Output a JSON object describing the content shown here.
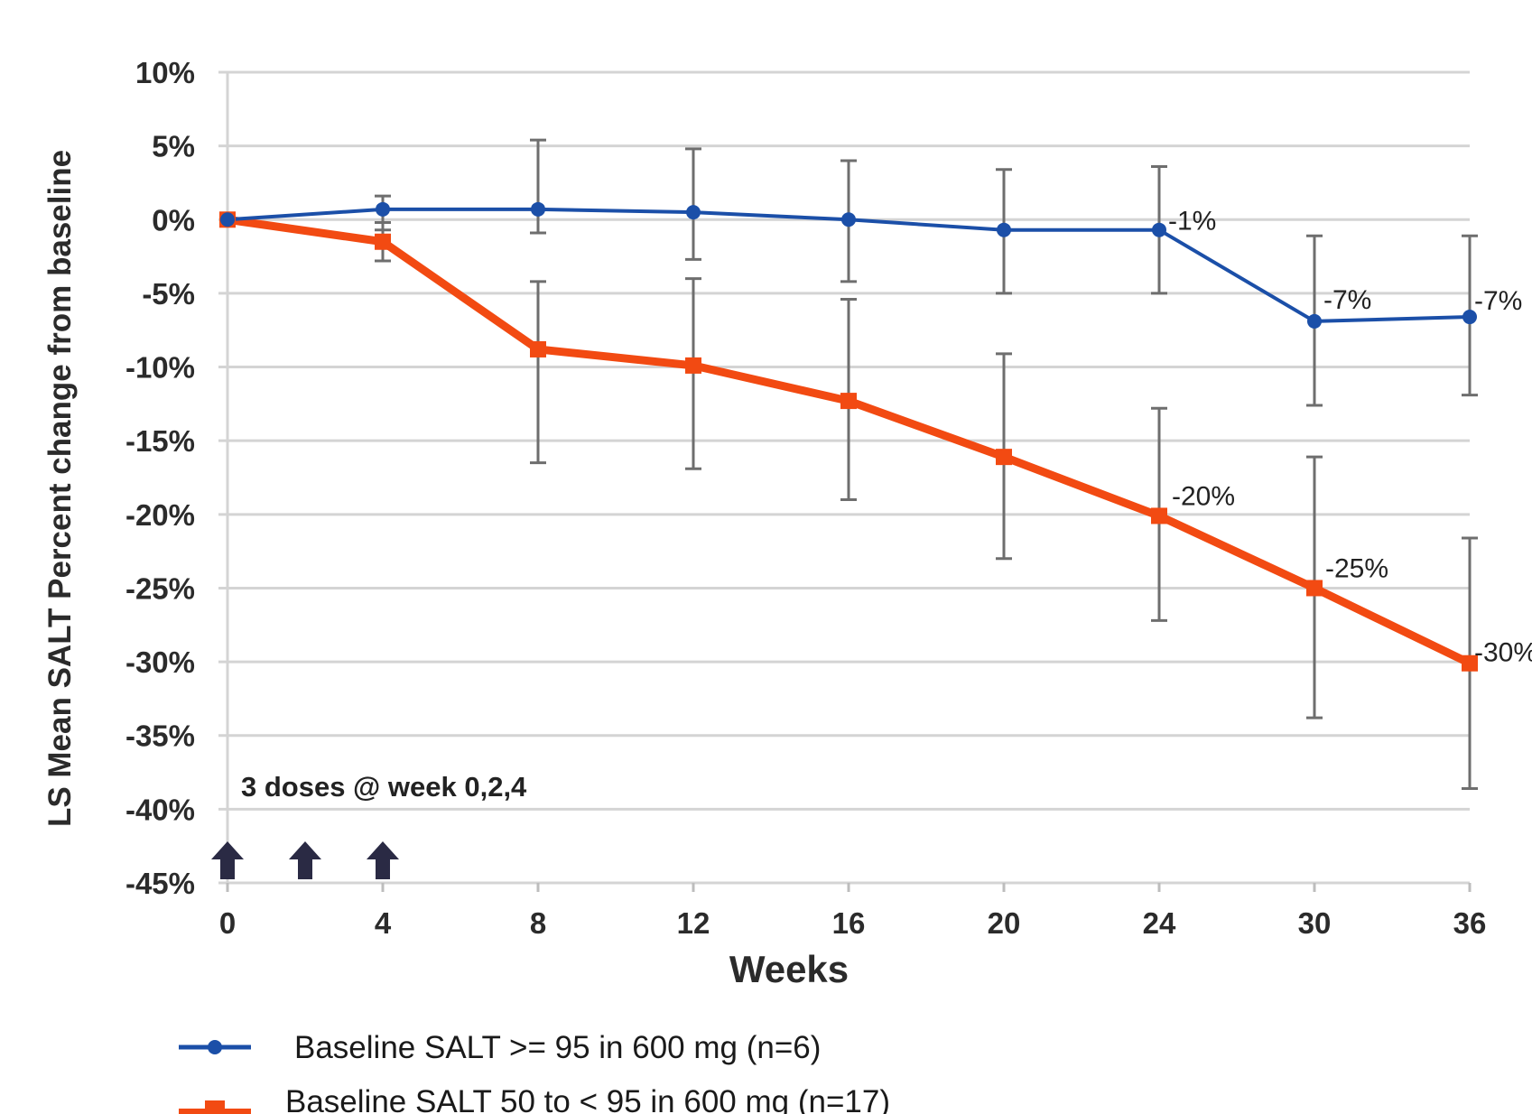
{
  "chart_data": {
    "type": "line",
    "xlabel": "Weeks",
    "ylabel": "LS Mean SALT Percent change from baseline",
    "x": [
      0,
      4,
      8,
      12,
      16,
      20,
      24,
      30,
      36
    ],
    "x_tick_labels": [
      "0",
      "4",
      "8",
      "12",
      "16",
      "20",
      "24",
      "30",
      "36"
    ],
    "ylim": [
      -45,
      10
    ],
    "y_ticks": [
      10,
      5,
      0,
      -5,
      -10,
      -15,
      -20,
      -25,
      -30,
      -35,
      -40,
      -45
    ],
    "y_tick_labels": [
      "10%",
      "5%",
      "0%",
      "-5%",
      "-10%",
      "-15%",
      "-20%",
      "-25%",
      "-30%",
      "-35%",
      "-40%",
      "-45%"
    ],
    "grid": true,
    "legend_position": "bottom",
    "series": [
      {
        "name": "Baseline SALT >= 95 in 600 mg (n=6)",
        "color": "#1b4fa8",
        "marker": "circle",
        "values": [
          0,
          0.7,
          0.7,
          0.5,
          0,
          -0.7,
          -0.7,
          -6.9,
          -6.6
        ],
        "err_upper": [
          0,
          1.6,
          5.4,
          4.8,
          4.0,
          3.4,
          3.6,
          -1.1,
          -1.1
        ],
        "err_lower": [
          0,
          -0.7,
          -0.9,
          -2.7,
          -4.2,
          -5.0,
          -5.0,
          -12.6,
          -11.9
        ],
        "point_labels": [
          "",
          "",
          "",
          "",
          "",
          "",
          "-1%",
          "-7%",
          "-7%"
        ]
      },
      {
        "name": "Baseline SALT 50 to < 95 in 600 mg  (n=17)",
        "color": "#f24a12",
        "marker": "square",
        "values": [
          0,
          -1.5,
          -8.8,
          -9.9,
          -12.3,
          -16.1,
          -20.1,
          -25.0,
          -30.1
        ],
        "err_upper": [
          0,
          -0.2,
          -4.2,
          -4.0,
          -5.4,
          -9.1,
          -12.8,
          -16.1,
          -21.6
        ],
        "err_lower": [
          0,
          -2.8,
          -16.5,
          -16.9,
          -19.0,
          -23.0,
          -27.2,
          -33.8,
          -38.6
        ],
        "point_labels": [
          "",
          "",
          "",
          "",
          "",
          "",
          "-20%",
          "-25%",
          "-30%"
        ]
      }
    ],
    "annotations": [
      {
        "text": "3 doses @ week 0,2,4",
        "dose_weeks": [
          0,
          2,
          4
        ],
        "marker": "up-arrow"
      }
    ]
  }
}
